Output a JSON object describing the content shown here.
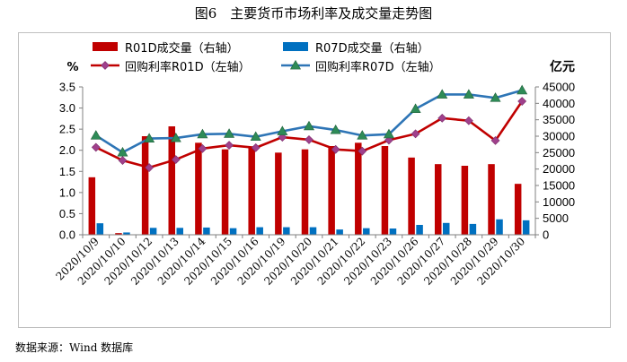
{
  "header": {
    "title": "图6　主要货币市场利率及成交量走势图"
  },
  "footer": {
    "source": "数据来源：Wind 数据库"
  },
  "chart_data": {
    "type": "bar",
    "title": "图6　主要货币市场利率及成交量走势图",
    "categories": [
      "2020/10/9",
      "2020/10/10",
      "2020/10/12",
      "2020/10/13",
      "2020/10/14",
      "2020/10/15",
      "2020/10/16",
      "2020/10/19",
      "2020/10/20",
      "2020/10/21",
      "2020/10/22",
      "2020/10/23",
      "2020/10/26",
      "2020/10/27",
      "2020/10/28",
      "2020/10/29",
      "2020/10/30"
    ],
    "y_left": {
      "unit": "%",
      "min": 0,
      "max": 3.5,
      "step": 0.5,
      "ticks": [
        "0.0",
        "0.5",
        "1.0",
        "1.5",
        "2.0",
        "2.5",
        "3.0",
        "3.5"
      ]
    },
    "y_right": {
      "unit": "亿元",
      "min": 0,
      "max": 45000,
      "step": 5000,
      "ticks": [
        "0",
        "5000",
        "10000",
        "15000",
        "20000",
        "25000",
        "30000",
        "35000",
        "40000",
        "45000"
      ]
    },
    "series": [
      {
        "name": "R01D成交量（右轴）",
        "kind": "bar",
        "axis": "right",
        "color": "#c00000",
        "values": [
          17500,
          500,
          30000,
          33000,
          28000,
          26000,
          26500,
          25000,
          26000,
          27000,
          28000,
          27000,
          23500,
          21500,
          21000,
          21500,
          15500
        ]
      },
      {
        "name": "R07D成交量（右轴）",
        "kind": "bar",
        "axis": "right",
        "color": "#0070c0",
        "values": [
          3500,
          700,
          2100,
          2100,
          2200,
          2000,
          2300,
          2300,
          2300,
          1600,
          2000,
          1900,
          3000,
          3600,
          3300,
          4700,
          4400
        ]
      },
      {
        "name": "回购利率R01D（左轴）",
        "kind": "line",
        "axis": "left",
        "color": "#c00000",
        "marker": "diamond",
        "marker_color": "#a0408c",
        "values": [
          2.07,
          1.76,
          1.59,
          1.78,
          2.04,
          2.12,
          2.06,
          2.31,
          2.25,
          2.02,
          1.98,
          2.24,
          2.39,
          2.76,
          2.7,
          2.23,
          3.16
        ]
      },
      {
        "name": "回购利率R07D（左轴）",
        "kind": "line",
        "axis": "left",
        "color": "#2e75b6",
        "marker": "triangle",
        "marker_color": "#2e8b57",
        "values": [
          2.35,
          1.95,
          2.28,
          2.29,
          2.38,
          2.39,
          2.32,
          2.45,
          2.57,
          2.48,
          2.35,
          2.38,
          2.98,
          3.32,
          3.32,
          3.24,
          3.42
        ]
      }
    ],
    "legend": "top",
    "grid": false
  }
}
